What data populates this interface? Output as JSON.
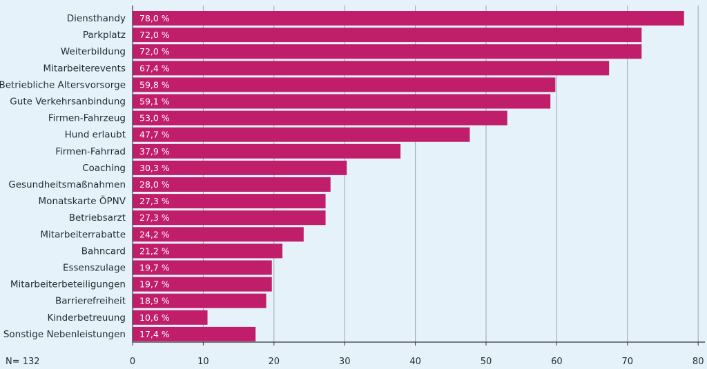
{
  "colors": {
    "background": "#e6f2fa",
    "bar": "#c01d6a",
    "grid": "#9aa3aa",
    "text": "#1f2a33"
  },
  "footnote": "N= 132",
  "chart_data": {
    "type": "bar",
    "orientation": "horizontal",
    "categories": [
      "Diensthandy",
      "Parkplatz",
      "Weiterbildung",
      "Mitarbeiterevents",
      "Betriebliche Altersvorsorge",
      "Gute Verkehrsanbindung",
      "Firmen-Fahrzeug",
      "Hund erlaubt",
      "Firmen-Fahrrad",
      "Coaching",
      "Gesundheitsmaßnahmen",
      "Monatskarte ÖPNV",
      "Betriebsarzt",
      "Mitarbeiterrabatte",
      "Bahncard",
      "Essenszulage",
      "Mitarbeiterbeteiligungen",
      "Barrierefreiheit",
      "Kinderbetreuung",
      "Sonstige Nebenleistungen"
    ],
    "values": [
      78.0,
      72.0,
      72.0,
      67.4,
      59.8,
      59.1,
      53.0,
      47.7,
      37.9,
      30.3,
      28.0,
      27.3,
      27.3,
      24.2,
      21.2,
      19.7,
      19.7,
      18.9,
      10.6,
      17.4
    ],
    "value_labels": [
      "78,0 %",
      "72,0 %",
      "72,0 %",
      "67,4 %",
      "59,8 %",
      "59,1 %",
      "53,0 %",
      "47,7 %",
      "37,9 %",
      "30,3 %",
      "28,0 %",
      "27,3 %",
      "27,3 %",
      "24,2 %",
      "21,2 %",
      "19,7 %",
      "19,7 %",
      "18,9 %",
      "10,6 %",
      "17,4 %"
    ],
    "xticks": [
      0,
      10,
      20,
      30,
      40,
      50,
      60,
      70,
      80
    ],
    "xlim": [
      0,
      80
    ],
    "xlabel": "",
    "ylabel": "",
    "title": "",
    "grid": "vertical",
    "legend": "none"
  }
}
